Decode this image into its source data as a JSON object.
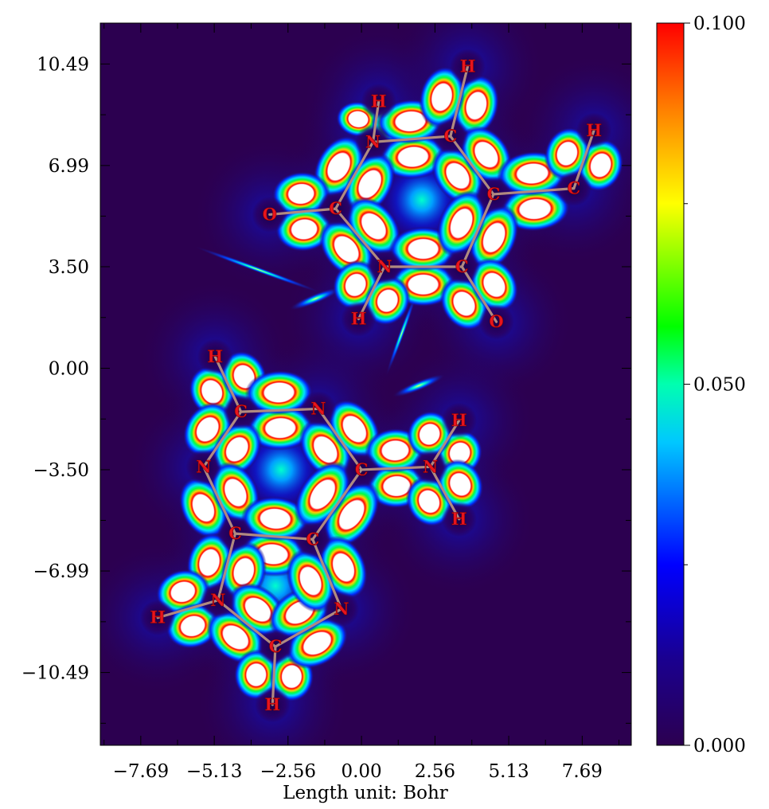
{
  "chart_data": {
    "type": "heatmap",
    "xlabel": "Length unit: Bohr",
    "ylabel": "",
    "xlim": [
      -9.1,
      9.4
    ],
    "ylim": [
      -13.0,
      11.9
    ],
    "x_ticks": [
      -7.69,
      -5.13,
      -2.56,
      0.0,
      2.56,
      5.13,
      7.69
    ],
    "x_tick_labels": [
      "−7.69",
      "−5.13",
      "−2.56",
      "0.00",
      "2.56",
      "5.13",
      "7.69"
    ],
    "y_ticks": [
      10.49,
      6.99,
      3.5,
      0.0,
      -3.5,
      -6.99,
      -10.49
    ],
    "y_tick_labels": [
      "10.49",
      "6.99",
      "3.50",
      "0.00",
      "−3.50",
      "−6.99",
      "−10.49"
    ],
    "colorbar": {
      "min": 0.0,
      "max": 0.1,
      "tick_values": [
        0.1,
        0.05,
        0.0
      ],
      "tick_labels": [
        "0.100",
        "0.050",
        "0.000"
      ],
      "colors": [
        "#2c0050",
        "#0000ff",
        "#00ffff",
        "#00ff00",
        "#ffff00",
        "#ff0000"
      ]
    },
    "atoms": [
      {
        "id": "a1",
        "el": "H",
        "x": 0.6,
        "y": 9.2
      },
      {
        "id": "a2",
        "el": "H",
        "x": 3.7,
        "y": 10.4
      },
      {
        "id": "a3",
        "el": "N",
        "x": 0.4,
        "y": 7.8
      },
      {
        "id": "a4",
        "el": "C",
        "x": 3.1,
        "y": 8.0
      },
      {
        "id": "a5",
        "el": "H",
        "x": 8.1,
        "y": 8.2
      },
      {
        "id": "a6",
        "el": "C",
        "x": 4.6,
        "y": 6.0
      },
      {
        "id": "a7",
        "el": "C",
        "x": 7.4,
        "y": 6.2
      },
      {
        "id": "a8",
        "el": "O",
        "x": -3.2,
        "y": 5.3
      },
      {
        "id": "a9",
        "el": "C",
        "x": -0.9,
        "y": 5.5
      },
      {
        "id": "a10",
        "el": "N",
        "x": 0.8,
        "y": 3.5
      },
      {
        "id": "a11",
        "el": "C",
        "x": 3.5,
        "y": 3.5
      },
      {
        "id": "a12",
        "el": "H",
        "x": -0.1,
        "y": 1.7
      },
      {
        "id": "a13",
        "el": "O",
        "x": 4.7,
        "y": 1.6
      },
      {
        "id": "a14",
        "el": "H",
        "x": -5.1,
        "y": 0.4
      },
      {
        "id": "a15",
        "el": "C",
        "x": -4.2,
        "y": -1.5
      },
      {
        "id": "a16",
        "el": "N",
        "x": -1.5,
        "y": -1.4
      },
      {
        "id": "a17",
        "el": "H",
        "x": 3.4,
        "y": -1.8
      },
      {
        "id": "a18",
        "el": "N",
        "x": -5.5,
        "y": -3.4
      },
      {
        "id": "a19",
        "el": "C",
        "x": 0.0,
        "y": -3.5
      },
      {
        "id": "a20",
        "el": "N",
        "x": 2.4,
        "y": -3.4
      },
      {
        "id": "a21",
        "el": "H",
        "x": 3.4,
        "y": -5.2
      },
      {
        "id": "a22",
        "el": "C",
        "x": -4.4,
        "y": -5.7
      },
      {
        "id": "a23",
        "el": "C",
        "x": -1.7,
        "y": -5.9
      },
      {
        "id": "a24",
        "el": "N",
        "x": -5.0,
        "y": -8.0
      },
      {
        "id": "a25",
        "el": "N",
        "x": -0.7,
        "y": -8.3
      },
      {
        "id": "a26",
        "el": "H",
        "x": -7.1,
        "y": -8.6
      },
      {
        "id": "a27",
        "el": "C",
        "x": -3.0,
        "y": -9.6
      },
      {
        "id": "a28",
        "el": "H",
        "x": -3.1,
        "y": -11.6
      }
    ],
    "bonds": [
      [
        "a1",
        "a3"
      ],
      [
        "a3",
        "a4"
      ],
      [
        "a4",
        "a2"
      ],
      [
        "a4",
        "a6"
      ],
      [
        "a6",
        "a7"
      ],
      [
        "a7",
        "a5"
      ],
      [
        "a3",
        "a9"
      ],
      [
        "a9",
        "a8"
      ],
      [
        "a9",
        "a10"
      ],
      [
        "a10",
        "a11"
      ],
      [
        "a10",
        "a12"
      ],
      [
        "a11",
        "a6"
      ],
      [
        "a11",
        "a13"
      ],
      [
        "a14",
        "a15"
      ],
      [
        "a15",
        "a16"
      ],
      [
        "a15",
        "a18"
      ],
      [
        "a16",
        "a19"
      ],
      [
        "a19",
        "a20"
      ],
      [
        "a20",
        "a17"
      ],
      [
        "a20",
        "a21"
      ],
      [
        "a18",
        "a22"
      ],
      [
        "a22",
        "a23"
      ],
      [
        "a23",
        "a19"
      ],
      [
        "a22",
        "a24"
      ],
      [
        "a24",
        "a26"
      ],
      [
        "a24",
        "a27"
      ],
      [
        "a27",
        "a28"
      ],
      [
        "a27",
        "a25"
      ],
      [
        "a25",
        "a23"
      ]
    ],
    "ring_centers": [
      {
        "x": 2.1,
        "y": 5.8
      },
      {
        "x": -2.8,
        "y": -3.5
      },
      {
        "x": -3.0,
        "y": -7.5
      }
    ]
  }
}
